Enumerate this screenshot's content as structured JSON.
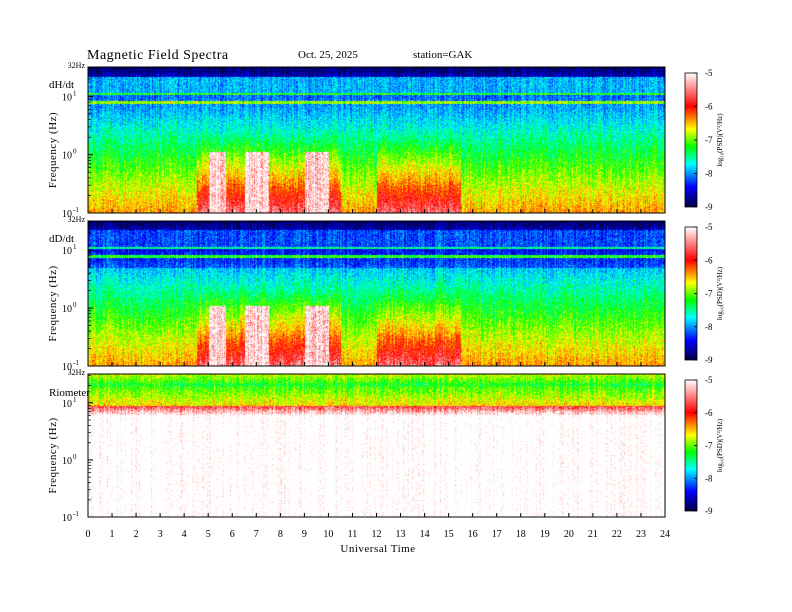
{
  "header": {
    "title": "Magnetic Field Spectra",
    "date": "Oct. 25, 2025",
    "station": "station=GAK"
  },
  "chart_data": {
    "type": "heatmap",
    "x_axis": {
      "label": "Universal Time",
      "range": [
        0,
        24
      ],
      "ticks": [
        "0",
        "1",
        "2",
        "3",
        "4",
        "5",
        "6",
        "7",
        "8",
        "9",
        "10",
        "11",
        "12",
        "13",
        "14",
        "15",
        "16",
        "17",
        "18",
        "19",
        "20",
        "21",
        "22",
        "23",
        "24"
      ]
    },
    "y_axis": {
      "label": "Frequency (Hz)",
      "scale": "log",
      "range": [
        0.1,
        32
      ],
      "top_label": "32Hz",
      "ticks": [
        {
          "base": "10",
          "exp": "1",
          "value": 10
        },
        {
          "base": "10",
          "exp": "0",
          "value": 1
        },
        {
          "base": "10",
          "exp": "-1",
          "value": 0.1
        }
      ]
    },
    "colorbar": {
      "label": "log₁₀(PSD)(V²/Hz)",
      "range": [
        -9,
        -5
      ],
      "ticks": [
        "-5",
        "-6",
        "-7",
        "-8",
        "-9"
      ],
      "colors": [
        "#ffffff",
        "#ff0000",
        "#ffff00",
        "#00ff00",
        "#00ffff",
        "#0000ff",
        "#000040"
      ]
    },
    "panels": [
      {
        "name": "dH/dt",
        "bright_bands_hz": [
          8.0
        ],
        "active_intervals_ut": [
          [
            4.5,
            10.5
          ],
          [
            12.0,
            15.5
          ]
        ],
        "saturated_intervals_ut": [
          [
            5.0,
            5.7
          ],
          [
            6.5,
            7.5
          ],
          [
            9.0,
            10.0
          ]
        ]
      },
      {
        "name": "dD/dt",
        "bright_bands_hz": [
          8.0
        ],
        "active_intervals_ut": [
          [
            4.5,
            10.5
          ],
          [
            12.0,
            15.5
          ]
        ],
        "saturated_intervals_ut": [
          [
            5.0,
            5.7
          ],
          [
            6.5,
            7.5
          ],
          [
            9.0,
            10.0
          ]
        ]
      },
      {
        "name": "Riometer",
        "bright_bands_hz": [],
        "active_intervals_ut": [
          [
            0,
            24
          ]
        ],
        "saturated_intervals_ut": [
          [
            0,
            24
          ]
        ]
      }
    ]
  }
}
